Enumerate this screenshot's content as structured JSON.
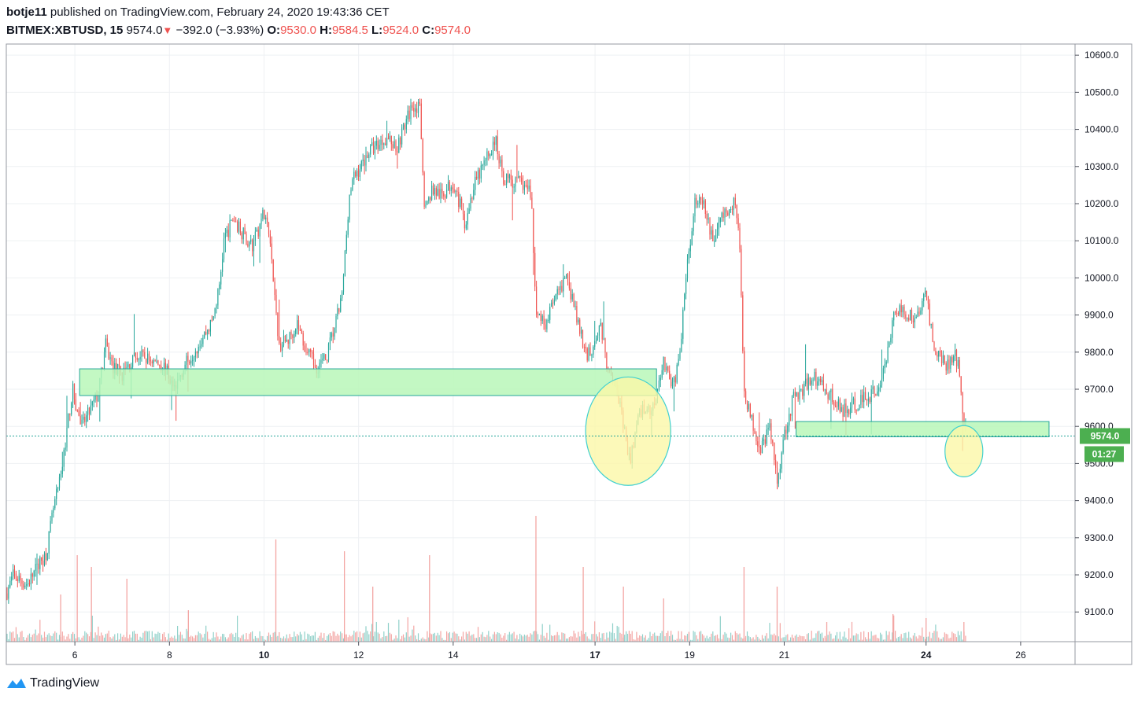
{
  "header": {
    "author": "botje11",
    "published_text": " published on TradingView.com, February 24, 2020 19:43:36 CET",
    "symbol": "BITMEX:XBTUSD, 15",
    "last": "9574.0",
    "change_arrow": "▼",
    "change": "−392.0 (−3.93%)",
    "o_label": "O:",
    "o": "9530.0",
    "h_label": "H:",
    "h": "9584.5",
    "l_label": "L:",
    "l": "9524.0",
    "c_label": "C:",
    "c": "9574.0"
  },
  "footer": {
    "brand": "TradingView",
    "logo_icon": "tradingview-logo-icon"
  },
  "colors": {
    "up": "#26a69a",
    "down": "#ef5350",
    "zone_fill": "#b9f7b9",
    "zone_stroke": "#26a69a",
    "circle_fill": "#fbf8a8",
    "circle_stroke": "#3fd0d0",
    "last_price_bg": "#4caf50",
    "grid": "#eef0f3"
  },
  "chart_data": {
    "type": "candlestick",
    "symbol": "BITMEX:XBTUSD",
    "interval": "15",
    "y_ticks": [
      "10600.0",
      "10500.0",
      "10400.0",
      "10300.0",
      "10200.0",
      "10100.0",
      "10000.0",
      "9900.0",
      "9800.0",
      "9700.0",
      "9600.0",
      "9500.0",
      "9400.0",
      "9300.0",
      "9200.0",
      "9100.0"
    ],
    "ylim": [
      9020,
      10630
    ],
    "x_ticks": [
      {
        "label": "6",
        "day": 6,
        "bold": false
      },
      {
        "label": "8",
        "day": 8,
        "bold": false
      },
      {
        "label": "10",
        "day": 10,
        "bold": true
      },
      {
        "label": "12",
        "day": 12,
        "bold": false
      },
      {
        "label": "14",
        "day": 14,
        "bold": false
      },
      {
        "label": "17",
        "day": 17,
        "bold": true
      },
      {
        "label": "19",
        "day": 19,
        "bold": false
      },
      {
        "label": "21",
        "day": 21,
        "bold": false
      },
      {
        "label": "24",
        "day": 24,
        "bold": true
      },
      {
        "label": "26",
        "day": 26,
        "bold": false
      }
    ],
    "xlim_days": [
      4.55,
      27.15
    ],
    "last_price": 9574.0,
    "last_price_label": "9574.0",
    "countdown": "01:27",
    "price_path": [
      [
        4.55,
        9150
      ],
      [
        4.7,
        9200
      ],
      [
        4.9,
        9180
      ],
      [
        5.0,
        9175
      ],
      [
        5.2,
        9220
      ],
      [
        5.4,
        9260
      ],
      [
        5.55,
        9380
      ],
      [
        5.7,
        9460
      ],
      [
        5.8,
        9560
      ],
      [
        5.95,
        9700
      ],
      [
        6.05,
        9640
      ],
      [
        6.15,
        9600
      ],
      [
        6.35,
        9650
      ],
      [
        6.5,
        9690
      ],
      [
        6.65,
        9820
      ],
      [
        6.8,
        9760
      ],
      [
        7.0,
        9740
      ],
      [
        7.3,
        9790
      ],
      [
        7.6,
        9780
      ],
      [
        7.9,
        9760
      ],
      [
        8.1,
        9700
      ],
      [
        8.3,
        9760
      ],
      [
        8.6,
        9820
      ],
      [
        8.9,
        9880
      ],
      [
        9.05,
        9970
      ],
      [
        9.15,
        10100
      ],
      [
        9.35,
        10160
      ],
      [
        9.55,
        10120
      ],
      [
        9.75,
        10080
      ],
      [
        10.0,
        10180
      ],
      [
        10.15,
        10080
      ],
      [
        10.3,
        9820
      ],
      [
        10.5,
        9830
      ],
      [
        10.7,
        9880
      ],
      [
        10.9,
        9800
      ],
      [
        11.1,
        9760
      ],
      [
        11.3,
        9780
      ],
      [
        11.5,
        9870
      ],
      [
        11.65,
        9950
      ],
      [
        11.8,
        10220
      ],
      [
        11.9,
        10270
      ],
      [
        12.05,
        10300
      ],
      [
        12.2,
        10340
      ],
      [
        12.4,
        10360
      ],
      [
        12.6,
        10380
      ],
      [
        12.8,
        10350
      ],
      [
        13.0,
        10420
      ],
      [
        13.15,
        10470
      ],
      [
        13.3,
        10450
      ],
      [
        13.4,
        10180
      ],
      [
        13.55,
        10240
      ],
      [
        13.75,
        10220
      ],
      [
        14.0,
        10260
      ],
      [
        14.25,
        10150
      ],
      [
        14.45,
        10250
      ],
      [
        14.7,
        10320
      ],
      [
        14.9,
        10370
      ],
      [
        15.05,
        10270
      ],
      [
        15.3,
        10260
      ],
      [
        15.5,
        10250
      ],
      [
        15.65,
        10230
      ],
      [
        15.75,
        9900
      ],
      [
        15.95,
        9880
      ],
      [
        16.15,
        9940
      ],
      [
        16.4,
        10000
      ],
      [
        16.6,
        9900
      ],
      [
        16.8,
        9790
      ],
      [
        16.95,
        9810
      ],
      [
        17.1,
        9880
      ],
      [
        17.25,
        9770
      ],
      [
        17.4,
        9740
      ],
      [
        17.55,
        9640
      ],
      [
        17.65,
        9560
      ],
      [
        17.75,
        9500
      ],
      [
        17.85,
        9590
      ],
      [
        18.0,
        9650
      ],
      [
        18.2,
        9640
      ],
      [
        18.35,
        9720
      ],
      [
        18.45,
        9780
      ],
      [
        18.65,
        9700
      ],
      [
        18.8,
        9800
      ],
      [
        18.9,
        9980
      ],
      [
        19.0,
        10080
      ],
      [
        19.1,
        10210
      ],
      [
        19.3,
        10190
      ],
      [
        19.5,
        10100
      ],
      [
        19.65,
        10160
      ],
      [
        19.85,
        10180
      ],
      [
        19.95,
        10210
      ],
      [
        20.05,
        10120
      ],
      [
        20.15,
        9700
      ],
      [
        20.3,
        9620
      ],
      [
        20.5,
        9540
      ],
      [
        20.7,
        9600
      ],
      [
        20.85,
        9450
      ],
      [
        21.0,
        9580
      ],
      [
        21.2,
        9680
      ],
      [
        21.4,
        9700
      ],
      [
        21.6,
        9740
      ],
      [
        21.8,
        9710
      ],
      [
        22.0,
        9680
      ],
      [
        22.25,
        9640
      ],
      [
        22.5,
        9660
      ],
      [
        22.75,
        9680
      ],
      [
        23.0,
        9700
      ],
      [
        23.15,
        9760
      ],
      [
        23.3,
        9900
      ],
      [
        23.5,
        9910
      ],
      [
        23.8,
        9890
      ],
      [
        24.0,
        9960
      ],
      [
        24.1,
        9870
      ],
      [
        24.2,
        9790
      ],
      [
        24.35,
        9780
      ],
      [
        24.5,
        9760
      ],
      [
        24.6,
        9800
      ],
      [
        24.7,
        9760
      ],
      [
        24.78,
        9640
      ],
      [
        24.85,
        9574
      ]
    ],
    "volume_spikes": [
      [
        5.7,
        60
      ],
      [
        6.05,
        110
      ],
      [
        6.35,
        95
      ],
      [
        7.1,
        80
      ],
      [
        8.4,
        40
      ],
      [
        10.25,
        130
      ],
      [
        11.7,
        115
      ],
      [
        12.3,
        70
      ],
      [
        13.5,
        110
      ],
      [
        15.75,
        160
      ],
      [
        16.75,
        95
      ],
      [
        17.6,
        70
      ],
      [
        18.45,
        55
      ],
      [
        20.15,
        95
      ],
      [
        20.85,
        70
      ],
      [
        21.9,
        25
      ],
      [
        23.3,
        35
      ],
      [
        24.0,
        30
      ],
      [
        24.8,
        25
      ]
    ],
    "annotations": [
      {
        "type": "zone",
        "x0_day": 6.1,
        "x1_day": 18.3,
        "y0": 9683,
        "y1": 9755
      },
      {
        "type": "zone",
        "x0_day": 21.25,
        "x1_day": 26.6,
        "y0": 9572,
        "y1": 9613
      },
      {
        "type": "ellipse",
        "cx_day": 17.7,
        "cy": 9587,
        "rx_days": 0.9,
        "ry_price": 146
      },
      {
        "type": "ellipse",
        "cx_day": 24.8,
        "cy": 9533,
        "rx_days": 0.4,
        "ry_price": 69
      }
    ]
  }
}
